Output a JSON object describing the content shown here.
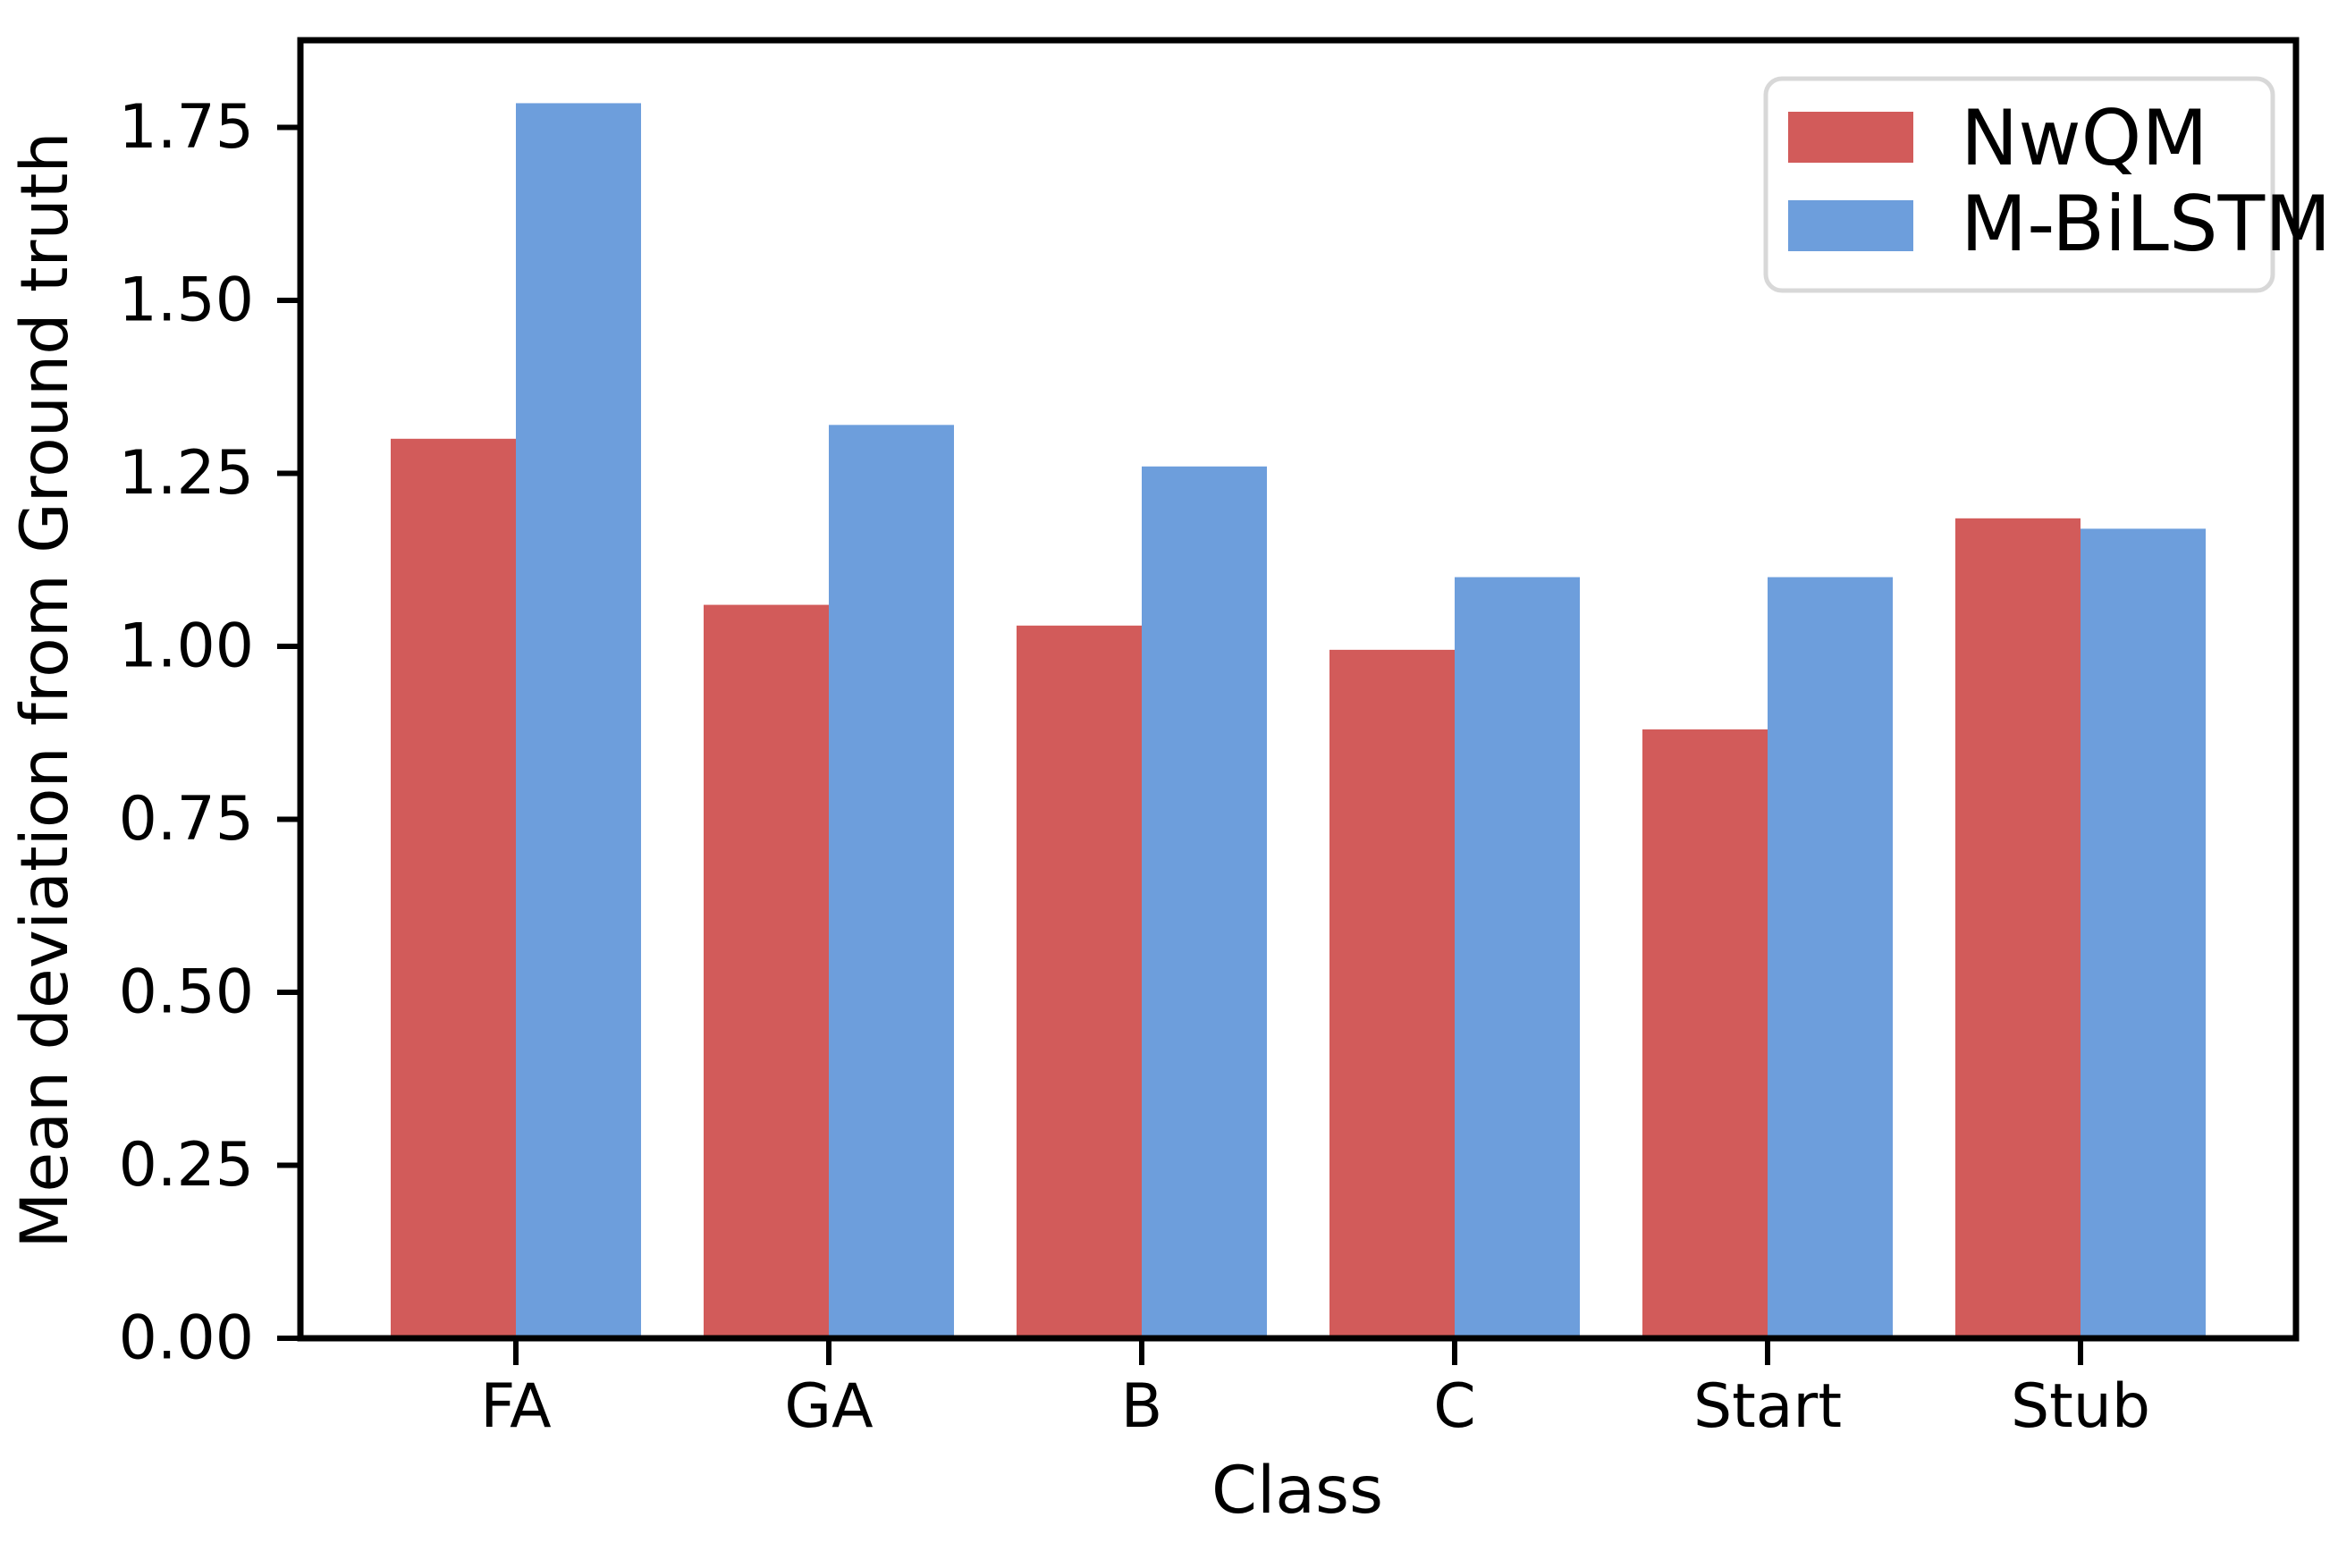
{
  "figure": {
    "background": "#ffffff",
    "axis_color": "#000000"
  },
  "chart_data": {
    "type": "bar",
    "title": "",
    "xlabel": "Class",
    "ylabel": "Mean deviation from Ground truth",
    "categories": [
      "FA",
      "GA",
      "B",
      "C",
      "Start",
      "Stub"
    ],
    "series": [
      {
        "name": "NwQM",
        "color": "#d25b5a",
        "values": [
          1.3,
          1.06,
          1.03,
          0.995,
          0.88,
          1.185
        ]
      },
      {
        "name": "M-BiLSTM",
        "color": "#6d9edc",
        "values": [
          1.785,
          1.32,
          1.26,
          1.1,
          1.1,
          1.17
        ]
      }
    ],
    "ylim": [
      0,
      1.876
    ],
    "yticks": [
      0,
      0.25,
      0.5,
      0.75,
      1.0,
      1.25,
      1.5,
      1.75
    ],
    "ytick_labels": [
      "0.00",
      "0.25",
      "0.50",
      "0.75",
      "1.00",
      "1.25",
      "1.50",
      "1.75"
    ],
    "grid": false,
    "legend": {
      "position": "upper right",
      "border_color": "#d8d8d8",
      "background": "#ffffff"
    }
  }
}
